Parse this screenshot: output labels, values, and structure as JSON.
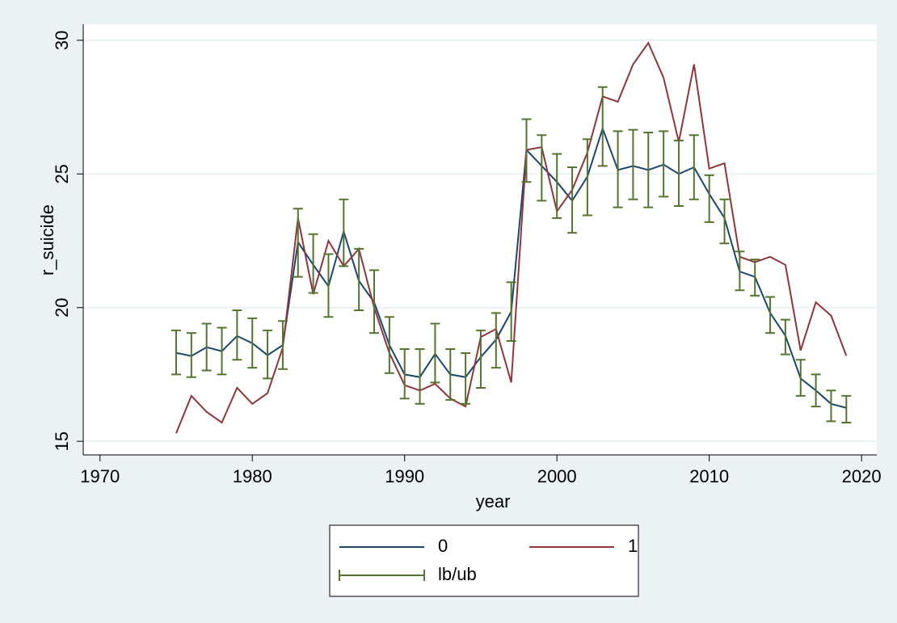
{
  "chart_data": {
    "type": "line",
    "x_label": "year",
    "y_label": "r_suicide",
    "xlim": [
      1968.9,
      2021.0
    ],
    "ylim": [
      14.49,
      30.6
    ],
    "xticks": [
      1970,
      1980,
      1990,
      2000,
      2010,
      2020
    ],
    "yticks": [
      15,
      20,
      25,
      30
    ],
    "grid": true,
    "legend": "bottom",
    "x": [
      1975,
      1976,
      1977,
      1978,
      1979,
      1980,
      1981,
      1982,
      1983,
      1984,
      1985,
      1986,
      1987,
      1988,
      1989,
      1990,
      1991,
      1992,
      1993,
      1994,
      1995,
      1996,
      1997,
      1998,
      1999,
      2000,
      2001,
      2002,
      2003,
      2004,
      2005,
      2006,
      2007,
      2008,
      2009,
      2010,
      2011,
      2012,
      2013,
      2014,
      2015,
      2016,
      2017,
      2018,
      2019
    ],
    "series": [
      {
        "name": "0",
        "color": "#1a476f",
        "values": [
          18.31,
          18.19,
          18.52,
          18.37,
          18.94,
          18.67,
          18.22,
          18.6,
          22.45,
          21.6,
          20.8,
          22.85,
          21.0,
          20.2,
          18.6,
          17.5,
          17.4,
          18.27,
          17.5,
          17.4,
          18.15,
          18.8,
          19.85,
          25.9,
          25.3,
          24.7,
          24.0,
          24.9,
          26.7,
          25.15,
          25.3,
          25.15,
          25.35,
          25.0,
          25.25,
          24.25,
          23.35,
          21.35,
          21.15,
          19.8,
          18.95,
          17.35,
          16.9,
          16.4,
          16.25
        ]
      },
      {
        "name": "1",
        "color": "#90353b",
        "values": [
          15.3,
          16.7,
          16.1,
          15.7,
          17.0,
          16.4,
          16.8,
          18.5,
          23.35,
          20.5,
          22.5,
          21.55,
          22.2,
          20.0,
          18.3,
          17.1,
          16.9,
          17.15,
          16.6,
          16.3,
          18.9,
          19.2,
          17.2,
          25.9,
          26.0,
          23.6,
          24.4,
          25.8,
          27.9,
          27.7,
          29.1,
          29.9,
          28.6,
          26.2,
          29.1,
          25.2,
          25.4,
          21.9,
          21.7,
          21.9,
          21.6,
          18.4,
          20.2,
          19.7,
          18.2
        ]
      },
      {
        "name": "lb/ub",
        "color": "#55752f",
        "type": "errorbar",
        "low": [
          17.5,
          17.4,
          17.65,
          17.5,
          18.05,
          17.75,
          17.35,
          17.7,
          21.15,
          20.55,
          19.65,
          21.55,
          19.9,
          19.05,
          17.55,
          16.6,
          16.4,
          17.2,
          16.55,
          16.4,
          17.0,
          17.75,
          18.75,
          24.7,
          24.0,
          23.35,
          22.8,
          23.45,
          25.3,
          23.75,
          24.05,
          23.75,
          24.15,
          23.8,
          24.05,
          23.2,
          22.4,
          20.65,
          20.45,
          19.05,
          18.25,
          16.7,
          16.3,
          15.75,
          15.7
        ],
        "high": [
          19.15,
          19.05,
          19.4,
          19.25,
          19.9,
          19.6,
          19.15,
          19.5,
          23.7,
          22.75,
          22.0,
          24.05,
          22.2,
          21.4,
          19.65,
          18.45,
          18.45,
          19.4,
          18.45,
          18.3,
          19.15,
          19.8,
          20.95,
          27.05,
          26.45,
          25.75,
          25.25,
          26.3,
          28.25,
          26.6,
          26.65,
          26.55,
          26.6,
          26.25,
          26.45,
          24.95,
          24.05,
          22.1,
          21.8,
          20.4,
          19.55,
          18.05,
          17.5,
          16.9,
          16.7
        ]
      }
    ]
  }
}
